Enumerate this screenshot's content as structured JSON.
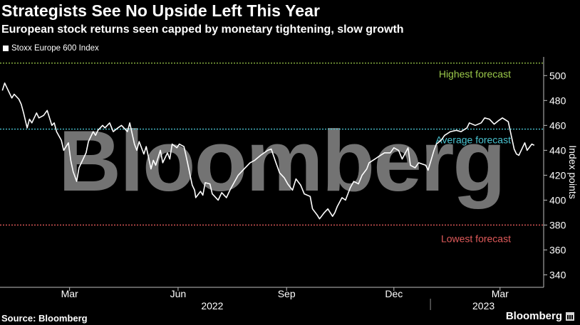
{
  "title": "Strategists See No Upside Left This Year",
  "subtitle": "European stock returns seen capped by monetary tightening, slow growth",
  "legend_label": "Stoxx Europe 600 Index",
  "source": "Source: Bloomberg",
  "brand": "Bloomberg",
  "watermark": "Bloomberg",
  "colors": {
    "background": "#000000",
    "line": "#ffffff",
    "highest": "#9bc94a",
    "average": "#49c2cf",
    "lowest": "#e05a5a",
    "axis": "#bfbfbf"
  },
  "chart_data": {
    "type": "line",
    "series": [
      {
        "name": "Stoxx Europe 600 Index",
        "points": [
          [
            "2022-01-03",
            488
          ],
          [
            "2022-01-05",
            494
          ],
          [
            "2022-01-07",
            490
          ],
          [
            "2022-01-11",
            482
          ],
          [
            "2022-01-13",
            485
          ],
          [
            "2022-01-17",
            481
          ],
          [
            "2022-01-19",
            477
          ],
          [
            "2022-01-21",
            470
          ],
          [
            "2022-01-24",
            458
          ],
          [
            "2022-01-26",
            465
          ],
          [
            "2022-01-28",
            462
          ],
          [
            "2022-02-01",
            470
          ],
          [
            "2022-02-03",
            466
          ],
          [
            "2022-02-07",
            468
          ],
          [
            "2022-02-10",
            472
          ],
          [
            "2022-02-14",
            460
          ],
          [
            "2022-02-16",
            462
          ],
          [
            "2022-02-18",
            455
          ],
          [
            "2022-02-22",
            448
          ],
          [
            "2022-02-24",
            440
          ],
          [
            "2022-02-28",
            446
          ],
          [
            "2022-03-02",
            432
          ],
          [
            "2022-03-04",
            423
          ],
          [
            "2022-03-07",
            415
          ],
          [
            "2022-03-09",
            426
          ],
          [
            "2022-03-11",
            430
          ],
          [
            "2022-03-15",
            438
          ],
          [
            "2022-03-17",
            447
          ],
          [
            "2022-03-21",
            455
          ],
          [
            "2022-03-23",
            452
          ],
          [
            "2022-03-25",
            456
          ],
          [
            "2022-03-29",
            460
          ],
          [
            "2022-03-31",
            458
          ],
          [
            "2022-04-04",
            462
          ],
          [
            "2022-04-07",
            455
          ],
          [
            "2022-04-11",
            458
          ],
          [
            "2022-04-14",
            460
          ],
          [
            "2022-04-19",
            455
          ],
          [
            "2022-04-21",
            462
          ],
          [
            "2022-04-25",
            445
          ],
          [
            "2022-04-27",
            440
          ],
          [
            "2022-04-29",
            447
          ],
          [
            "2022-05-03",
            437
          ],
          [
            "2022-05-05",
            443
          ],
          [
            "2022-05-09",
            425
          ],
          [
            "2022-05-11",
            432
          ],
          [
            "2022-05-13",
            428
          ],
          [
            "2022-05-17",
            440
          ],
          [
            "2022-05-19",
            430
          ],
          [
            "2022-05-23",
            438
          ],
          [
            "2022-05-25",
            433
          ],
          [
            "2022-05-27",
            445
          ],
          [
            "2022-05-31",
            442
          ],
          [
            "2022-06-02",
            445
          ],
          [
            "2022-06-06",
            443
          ],
          [
            "2022-06-09",
            430
          ],
          [
            "2022-06-13",
            412
          ],
          [
            "2022-06-15",
            408
          ],
          [
            "2022-06-16",
            402
          ],
          [
            "2022-06-20",
            407
          ],
          [
            "2022-06-22",
            404
          ],
          [
            "2022-06-24",
            414
          ],
          [
            "2022-06-28",
            413
          ],
          [
            "2022-06-30",
            405
          ],
          [
            "2022-07-05",
            400
          ],
          [
            "2022-07-08",
            406
          ],
          [
            "2022-07-12",
            402
          ],
          [
            "2022-07-15",
            408
          ],
          [
            "2022-07-19",
            415
          ],
          [
            "2022-07-22",
            420
          ],
          [
            "2022-07-27",
            425
          ],
          [
            "2022-08-01",
            430
          ],
          [
            "2022-08-05",
            432
          ],
          [
            "2022-08-10",
            436
          ],
          [
            "2022-08-16",
            440
          ],
          [
            "2022-08-19",
            441
          ],
          [
            "2022-08-23",
            430
          ],
          [
            "2022-08-26",
            422
          ],
          [
            "2022-08-30",
            418
          ],
          [
            "2022-09-02",
            413
          ],
          [
            "2022-09-06",
            408
          ],
          [
            "2022-09-09",
            417
          ],
          [
            "2022-09-13",
            412
          ],
          [
            "2022-09-16",
            405
          ],
          [
            "2022-09-21",
            403
          ],
          [
            "2022-09-23",
            393
          ],
          [
            "2022-09-27",
            388
          ],
          [
            "2022-09-29",
            385
          ],
          [
            "2022-10-03",
            390
          ],
          [
            "2022-10-06",
            393
          ],
          [
            "2022-10-10",
            387
          ],
          [
            "2022-10-12",
            390
          ],
          [
            "2022-10-14",
            395
          ],
          [
            "2022-10-18",
            402
          ],
          [
            "2022-10-21",
            400
          ],
          [
            "2022-10-25",
            410
          ],
          [
            "2022-10-28",
            415
          ],
          [
            "2022-11-01",
            413
          ],
          [
            "2022-11-04",
            420
          ],
          [
            "2022-11-08",
            425
          ],
          [
            "2022-11-10",
            430
          ],
          [
            "2022-11-15",
            433
          ],
          [
            "2022-11-18",
            435
          ],
          [
            "2022-11-23",
            438
          ],
          [
            "2022-11-28",
            438
          ],
          [
            "2022-12-01",
            442
          ],
          [
            "2022-12-05",
            440
          ],
          [
            "2022-12-08",
            433
          ],
          [
            "2022-12-13",
            442
          ],
          [
            "2022-12-15",
            428
          ],
          [
            "2022-12-19",
            426
          ],
          [
            "2022-12-22",
            430
          ],
          [
            "2022-12-28",
            428
          ],
          [
            "2022-12-30",
            424
          ],
          [
            "2023-01-04",
            440
          ],
          [
            "2023-01-06",
            445
          ],
          [
            "2023-01-10",
            448
          ],
          [
            "2023-01-13",
            452
          ],
          [
            "2023-01-18",
            455
          ],
          [
            "2023-01-23",
            456
          ],
          [
            "2023-01-27",
            455
          ],
          [
            "2023-02-01",
            458
          ],
          [
            "2023-02-03",
            462
          ],
          [
            "2023-02-08",
            460
          ],
          [
            "2023-02-13",
            462
          ],
          [
            "2023-02-16",
            466
          ],
          [
            "2023-02-20",
            465
          ],
          [
            "2023-02-24",
            461
          ],
          [
            "2023-02-28",
            464
          ],
          [
            "2023-03-03",
            466
          ],
          [
            "2023-03-08",
            463
          ],
          [
            "2023-03-10",
            454
          ],
          [
            "2023-03-13",
            441
          ],
          [
            "2023-03-15",
            437
          ],
          [
            "2023-03-17",
            436
          ],
          [
            "2023-03-20",
            442
          ],
          [
            "2023-03-22",
            446
          ],
          [
            "2023-03-24",
            440
          ],
          [
            "2023-03-28",
            445
          ],
          [
            "2023-03-30",
            444
          ]
        ]
      }
    ],
    "reference_lines": [
      {
        "label": "Highest forecast",
        "value": 510,
        "color": "#9bc94a"
      },
      {
        "label": "Average forecast",
        "value": 457,
        "color": "#49c2cf"
      },
      {
        "label": "Lowest forecast",
        "value": 380,
        "color": "#e05a5a"
      }
    ],
    "ylabel": "Index points",
    "ylim": [
      330,
      515
    ],
    "yticks": [
      340,
      360,
      380,
      400,
      420,
      440,
      460,
      480,
      500
    ],
    "xlim": [
      "2022-01-01",
      "2023-04-07"
    ],
    "month_ticks": [
      {
        "label": "Mar",
        "date": "2022-03-01"
      },
      {
        "label": "Jun",
        "date": "2022-06-01"
      },
      {
        "label": "Sep",
        "date": "2022-09-01"
      },
      {
        "label": "Dec",
        "date": "2022-12-01"
      },
      {
        "label": "Mar",
        "date": "2023-03-01"
      }
    ],
    "year_labels": [
      {
        "label": "2022",
        "date": "2022-06-30"
      },
      {
        "label": "2023",
        "date": "2023-02-15"
      }
    ],
    "year_boundary": "2023-01-01"
  }
}
